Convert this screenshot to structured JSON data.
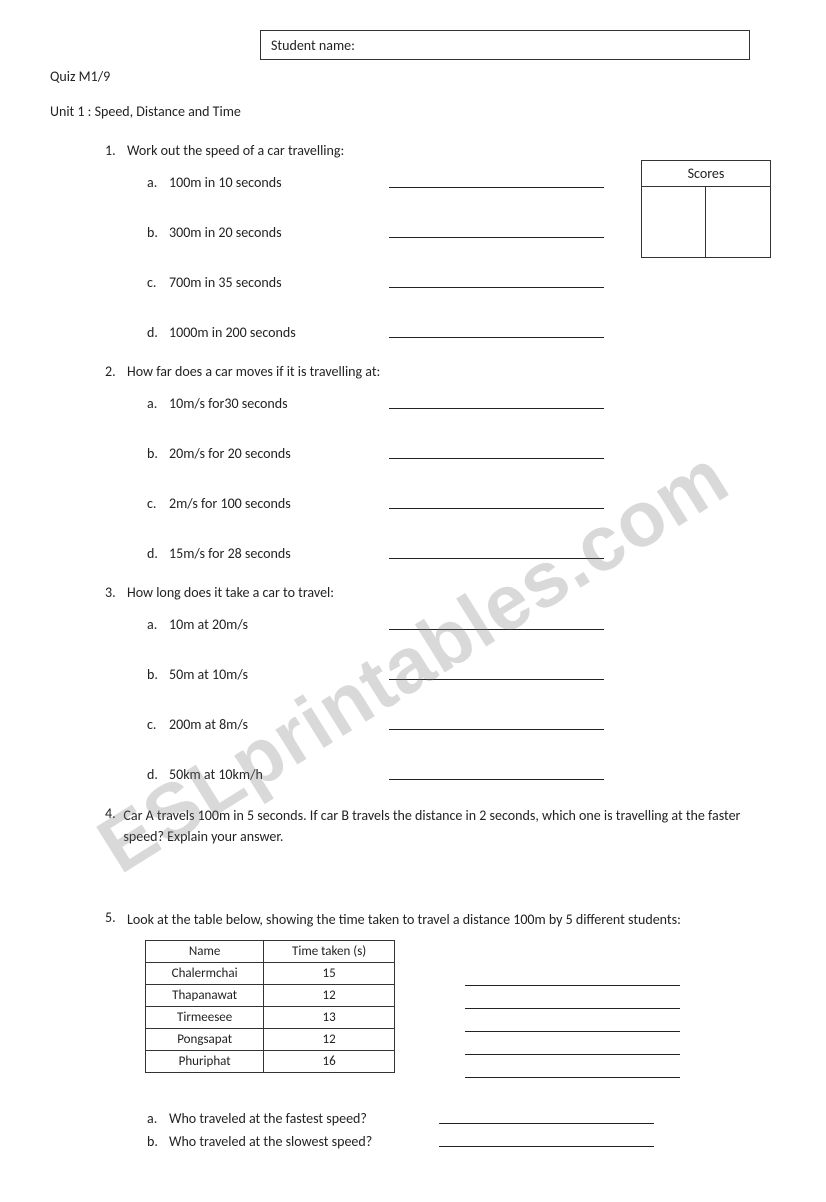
{
  "header": {
    "student_name_label": "Student name:",
    "quiz_label": "Quiz M1/9",
    "unit_title": "Unit 1 : Speed, Distance and Time"
  },
  "scores": {
    "label": "Scores"
  },
  "watermark": "ESLprintables.com",
  "q1": {
    "num": "1.",
    "stem": "Work out the speed of a car travelling:",
    "a_l": "a.",
    "a": "100m in 10 seconds",
    "b_l": "b.",
    "b": "300m in 20 seconds",
    "c_l": "c.",
    "c": "700m in 35 seconds",
    "d_l": "d.",
    "d": "1000m in 200 seconds"
  },
  "q2": {
    "num": "2.",
    "stem": "How far does a car moves if it is travelling at:",
    "a_l": "a.",
    "a": "10m/s for30 seconds",
    "b_l": "b.",
    "b": "20m/s for 20 seconds",
    "c_l": "c.",
    "c": "2m/s for 100 seconds",
    "d_l": "d.",
    "d": "15m/s for 28 seconds"
  },
  "q3": {
    "num": "3.",
    "stem": "How long does it take a car to travel:",
    "a_l": "a.",
    "a": "10m at 20m/s",
    "b_l": "b.",
    "b": "50m at  10m/s",
    "c_l": "c.",
    "c": "200m at  8m/s",
    "d_l": "d.",
    "d": "50km at  10km/h"
  },
  "q4": {
    "num": "4.",
    "text": "Car A travels 100m in 5 seconds. If  car B travels the distance in 2 seconds, which one is travelling at the faster speed? Explain your answer."
  },
  "q5": {
    "num": "5.",
    "text": "Look at the table below, showing the time taken to travel a distance 100m by 5 different students:",
    "table": {
      "col1": "Name",
      "col2": "Time taken (s)",
      "rows": [
        {
          "name": "Chalermchai",
          "time": "15"
        },
        {
          "name": "Thapanawat",
          "time": "12"
        },
        {
          "name": "Tirmeesee",
          "time": "13"
        },
        {
          "name": "Pongsapat",
          "time": "12"
        },
        {
          "name": "Phuriphat",
          "time": "16"
        }
      ]
    },
    "a_l": "a.",
    "a": "Who traveled at the fastest speed?",
    "b_l": "b.",
    "b": "Who traveled at the slowest speed?"
  }
}
